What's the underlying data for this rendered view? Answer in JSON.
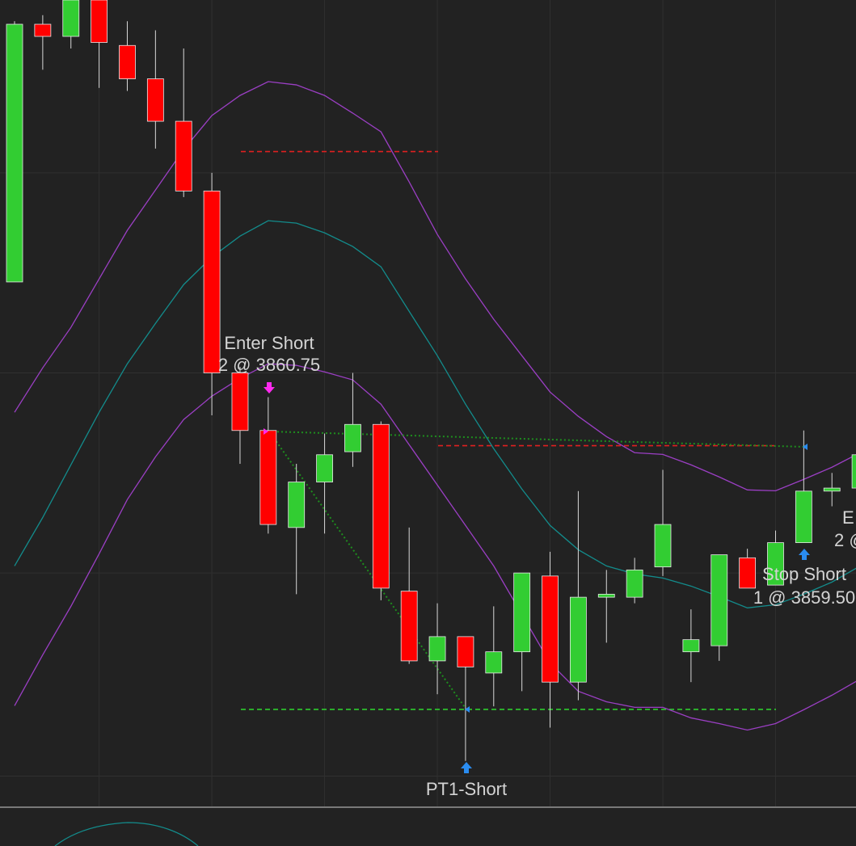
{
  "chart_data": {
    "type": "candlestick",
    "categories": [
      null,
      null,
      null,
      null,
      null,
      null,
      null,
      null,
      null,
      null,
      null,
      null,
      null,
      null,
      null,
      null,
      null,
      null,
      null,
      null,
      null,
      null,
      null,
      null,
      null,
      null,
      null,
      null,
      null,
      null,
      null
    ],
    "open": [
      3872.75,
      3894,
      3893,
      3896,
      3892.25,
      3889.5,
      3886,
      3880.25,
      3865.25,
      3860.5,
      3852.5,
      3856.25,
      3858.75,
      3861,
      3847.25,
      3841.5,
      3843.5,
      3840.5,
      3842.25,
      3848.5,
      3839.75,
      3846.75,
      3846.75,
      3849.25,
      3842.25,
      3842.75,
      3850,
      3847.75,
      3851.25,
      3855.5,
      3855.75
    ],
    "high": [
      3894.25,
      3894.75,
      3896,
      3896,
      3894.25,
      3893.5,
      3892,
      3881.75,
      3865.75,
      3863.25,
      3857.75,
      3860.25,
      3865.25,
      3861.25,
      3852.5,
      3846.25,
      3843.5,
      3846,
      3848.75,
      3850.5,
      3855.5,
      3849,
      3850,
      3857.25,
      3845.75,
      3850.25,
      3850.75,
      3852.25,
      3860.5,
      3857,
      3858.5
    ],
    "low": [
      3872.75,
      3890.25,
      3892,
      3888.75,
      3888.5,
      3883.75,
      3879.75,
      3861.75,
      3857.75,
      3852,
      3847,
      3852,
      3857.5,
      3846.5,
      3841.25,
      3838.75,
      3833.25,
      3837.75,
      3839,
      3836,
      3838.25,
      3843,
      3846.25,
      3848.5,
      3839.75,
      3841.5,
      3847.5,
      3847.75,
      3851.25,
      3854.25,
      3855.75
    ],
    "close": [
      3894,
      3893,
      3896,
      3892.5,
      3889.5,
      3886,
      3880.25,
      3865.25,
      3860.5,
      3852.75,
      3856.25,
      3858.5,
      3861,
      3847.5,
      3841.5,
      3843.5,
      3841,
      3842.25,
      3848.75,
      3839.75,
      3846.75,
      3847,
      3849,
      3852.75,
      3843.25,
      3850.25,
      3847.5,
      3851.25,
      3855.5,
      3855.75,
      3858.5
    ],
    "up_color": "#32cd32",
    "down_color": "#ff0000",
    "series": [
      {
        "color": "#9b3fc4",
        "values": [
          3862.0,
          3865.67,
          3869.0,
          3873.0,
          3877.0,
          3880.33,
          3883.67,
          3886.47,
          3888.13,
          3889.27,
          3889.0,
          3888.13,
          3886.67,
          3885.13,
          3881.0,
          3876.67,
          3873.0,
          3869.67,
          3866.67,
          3863.67,
          3861.67,
          3860.0,
          3858.67,
          3858.53,
          3857.67,
          3856.67,
          3855.6,
          3855.53,
          3856.47,
          3857.47,
          3858.67
        ]
      },
      {
        "color": "#138c8c",
        "values": [
          3849.33,
          3853.33,
          3857.67,
          3862.0,
          3866.0,
          3869.33,
          3872.53,
          3874.8,
          3876.53,
          3877.8,
          3877.6,
          3876.8,
          3875.67,
          3874.0,
          3870.33,
          3866.67,
          3862.67,
          3859.0,
          3855.67,
          3852.67,
          3850.67,
          3849.33,
          3848.67,
          3848.33,
          3847.67,
          3846.8,
          3845.87,
          3846.13,
          3847.0,
          3848.0,
          3849.33
        ]
      },
      {
        "color": "#9b3fc4",
        "values": [
          3837.8,
          3842.0,
          3846.0,
          3850.33,
          3854.8,
          3858.33,
          3861.4,
          3863.33,
          3864.8,
          3866.0,
          3865.87,
          3865.33,
          3864.67,
          3862.67,
          3859.33,
          3856.0,
          3852.67,
          3849.33,
          3845.33,
          3841.33,
          3839.0,
          3838.13,
          3837.67,
          3837.67,
          3836.8,
          3836.33,
          3835.8,
          3836.33,
          3837.47,
          3838.67,
          3840.0
        ]
      }
    ],
    "levels": [
      {
        "color": "#e02020",
        "value": 3883.5
      },
      {
        "color": "#e02020",
        "value": 3859.25
      },
      {
        "color": "#2ecc2e",
        "value": 3837.5
      }
    ],
    "ylim": [
      3829.5,
      3896
    ],
    "yticks": [
      3881.75,
      3865.25,
      3848.75,
      3832
    ],
    "grid": true,
    "annotations": [
      {
        "label": "Enter Short",
        "detail": "2 @ 3860.75"
      },
      {
        "label": "PT1-Short"
      },
      {
        "label": "Stop Short",
        "detail": "1 @ 3859.50"
      },
      {
        "label": "E",
        "detail": "2 @"
      }
    ]
  }
}
